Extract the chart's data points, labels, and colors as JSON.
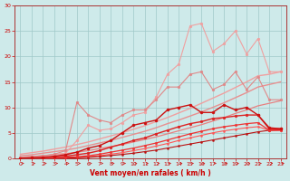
{
  "xlabel": "Vent moyen/en rafales ( km/h )",
  "bg_color": "#ceeaea",
  "grid_color": "#a0c8c8",
  "xlim": [
    -0.5,
    23.5
  ],
  "ylim": [
    0,
    30
  ],
  "yticks": [
    0,
    5,
    10,
    15,
    20,
    25,
    30
  ],
  "xticks": [
    0,
    1,
    2,
    3,
    4,
    5,
    6,
    7,
    8,
    9,
    10,
    11,
    12,
    13,
    14,
    15,
    16,
    17,
    18,
    19,
    20,
    21,
    22,
    23
  ],
  "lines": [
    {
      "x": [
        0,
        1,
        2,
        3,
        4,
        5,
        6,
        7,
        8,
        9,
        10,
        11,
        12,
        13,
        14,
        15,
        16,
        17,
        18,
        19,
        20,
        21,
        22,
        23
      ],
      "y": [
        0.8,
        1.1,
        1.4,
        1.8,
        2.2,
        2.7,
        3.2,
        3.8,
        4.4,
        5.0,
        5.7,
        6.4,
        7.2,
        8.0,
        8.9,
        9.8,
        10.8,
        11.8,
        12.8,
        13.9,
        15.0,
        16.2,
        16.5,
        17.0
      ],
      "color": "#f0a0a0",
      "lw": 1.0,
      "marker": null,
      "ms": 0,
      "zorder": 2
    },
    {
      "x": [
        0,
        1,
        2,
        3,
        4,
        5,
        6,
        7,
        8,
        9,
        10,
        11,
        12,
        13,
        14,
        15,
        16,
        17,
        18,
        19,
        20,
        21,
        22,
        23
      ],
      "y": [
        0.5,
        0.7,
        1.0,
        1.3,
        1.6,
        2.0,
        2.5,
        3.0,
        3.5,
        4.1,
        4.7,
        5.3,
        6.0,
        6.8,
        7.5,
        8.3,
        9.1,
        10.0,
        10.9,
        11.9,
        12.9,
        14.0,
        14.5,
        15.0
      ],
      "color": "#e89090",
      "lw": 1.0,
      "marker": null,
      "ms": 0,
      "zorder": 2
    },
    {
      "x": [
        0,
        1,
        2,
        3,
        4,
        5,
        6,
        7,
        8,
        9,
        10,
        11,
        12,
        13,
        14,
        15,
        16,
        17,
        18,
        19,
        20,
        21,
        22,
        23
      ],
      "y": [
        0.2,
        0.35,
        0.5,
        0.7,
        0.9,
        1.2,
        1.5,
        1.9,
        2.3,
        2.7,
        3.2,
        3.7,
        4.2,
        4.8,
        5.4,
        6.0,
        6.6,
        7.3,
        8.0,
        8.8,
        9.5,
        10.3,
        10.8,
        11.3
      ],
      "color": "#e88080",
      "lw": 0.9,
      "marker": null,
      "ms": 0,
      "zorder": 2
    },
    {
      "x": [
        0,
        1,
        2,
        3,
        4,
        5,
        6,
        7,
        8,
        9,
        10,
        11,
        12,
        13,
        14,
        15,
        16,
        17,
        18,
        19,
        20,
        21,
        22,
        23
      ],
      "y": [
        0.2,
        0.3,
        0.5,
        0.7,
        1.0,
        3.5,
        6.5,
        5.5,
        5.8,
        7.0,
        8.5,
        9.0,
        12.0,
        16.5,
        18.5,
        26.0,
        26.5,
        21.0,
        22.5,
        25.0,
        20.5,
        23.5,
        17.0,
        17.0
      ],
      "color": "#f0a0a0",
      "lw": 0.8,
      "marker": "o",
      "ms": 2.0,
      "mfc": "#f0a0a0",
      "zorder": 3
    },
    {
      "x": [
        0,
        1,
        2,
        3,
        4,
        5,
        6,
        7,
        8,
        9,
        10,
        11,
        12,
        13,
        14,
        15,
        16,
        17,
        18,
        19,
        20,
        21,
        22,
        23
      ],
      "y": [
        0.2,
        0.3,
        0.5,
        0.8,
        1.5,
        11.0,
        8.5,
        7.5,
        7.0,
        8.5,
        9.5,
        9.5,
        11.5,
        14.0,
        14.0,
        16.5,
        17.0,
        13.5,
        14.5,
        17.0,
        13.5,
        16.0,
        11.5,
        11.5
      ],
      "color": "#e08888",
      "lw": 0.8,
      "marker": "o",
      "ms": 2.0,
      "mfc": "#e08888",
      "zorder": 3
    },
    {
      "x": [
        0,
        1,
        2,
        3,
        4,
        5,
        6,
        7,
        8,
        9,
        10,
        11,
        12,
        13,
        14,
        15,
        16,
        17,
        18,
        19,
        20,
        21,
        22,
        23
      ],
      "y": [
        0.0,
        0.1,
        0.2,
        0.4,
        0.7,
        1.2,
        2.0,
        2.5,
        3.5,
        5.0,
        6.5,
        7.0,
        7.5,
        9.5,
        10.0,
        10.5,
        9.0,
        9.0,
        10.5,
        9.5,
        10.0,
        8.5,
        6.0,
        5.8
      ],
      "color": "#cc1111",
      "lw": 1.0,
      "marker": "o",
      "ms": 2.2,
      "mfc": "#cc1111",
      "zorder": 5
    },
    {
      "x": [
        0,
        1,
        2,
        3,
        4,
        5,
        6,
        7,
        8,
        9,
        10,
        11,
        12,
        13,
        14,
        15,
        16,
        17,
        18,
        19,
        20,
        21,
        22,
        23
      ],
      "y": [
        0.0,
        0.05,
        0.1,
        0.2,
        0.4,
        0.7,
        1.0,
        1.5,
        2.2,
        2.8,
        3.5,
        4.0,
        4.8,
        5.5,
        6.2,
        6.8,
        7.2,
        7.8,
        8.0,
        8.3,
        8.5,
        8.5,
        5.8,
        5.8
      ],
      "color": "#dd2222",
      "lw": 1.0,
      "marker": "o",
      "ms": 2.0,
      "mfc": "#dd2222",
      "zorder": 4
    },
    {
      "x": [
        0,
        1,
        2,
        3,
        4,
        5,
        6,
        7,
        8,
        9,
        10,
        11,
        12,
        13,
        14,
        15,
        16,
        17,
        18,
        19,
        20,
        21,
        22,
        23
      ],
      "y": [
        0.0,
        0.0,
        0.05,
        0.1,
        0.2,
        0.3,
        0.5,
        0.8,
        1.2,
        1.6,
        2.0,
        2.5,
        3.0,
        3.6,
        4.2,
        4.8,
        5.3,
        5.8,
        6.2,
        6.5,
        6.8,
        7.0,
        5.5,
        5.5
      ],
      "color": "#ee3333",
      "lw": 0.9,
      "marker": "o",
      "ms": 1.8,
      "mfc": "#ee3333",
      "zorder": 4
    },
    {
      "x": [
        0,
        1,
        2,
        3,
        4,
        5,
        6,
        7,
        8,
        9,
        10,
        11,
        12,
        13,
        14,
        15,
        16,
        17,
        18,
        19,
        20,
        21,
        22,
        23
      ],
      "y": [
        0.0,
        0.0,
        0.0,
        0.05,
        0.1,
        0.15,
        0.3,
        0.5,
        0.8,
        1.1,
        1.5,
        1.9,
        2.4,
        2.9,
        3.5,
        4.0,
        4.5,
        5.0,
        5.4,
        5.7,
        6.0,
        6.2,
        5.5,
        5.5
      ],
      "color": "#ff5555",
      "lw": 0.8,
      "marker": "o",
      "ms": 1.5,
      "mfc": "#ff5555",
      "zorder": 3
    },
    {
      "x": [
        0,
        1,
        2,
        3,
        4,
        5,
        6,
        7,
        8,
        9,
        10,
        11,
        12,
        13,
        14,
        15,
        16,
        17,
        18,
        19,
        20,
        21,
        22,
        23
      ],
      "y": [
        0.0,
        0.0,
        0.0,
        0.0,
        0.05,
        0.1,
        0.2,
        0.35,
        0.55,
        0.75,
        1.0,
        1.3,
        1.6,
        2.0,
        2.4,
        2.8,
        3.2,
        3.6,
        4.0,
        4.4,
        4.8,
        5.2,
        5.5,
        5.6
      ],
      "color": "#bb1111",
      "lw": 0.8,
      "marker": "o",
      "ms": 1.5,
      "mfc": "#bb1111",
      "zorder": 3
    }
  ],
  "wind_arrows_x": [
    0,
    1,
    2,
    3,
    4,
    5,
    6,
    7,
    8,
    9,
    10,
    11,
    12,
    13,
    14,
    15,
    16,
    17,
    18,
    19,
    20,
    21,
    22,
    23
  ],
  "wind_arrows_y": [
    -1.5
  ],
  "arrow_color": "#cc2222"
}
